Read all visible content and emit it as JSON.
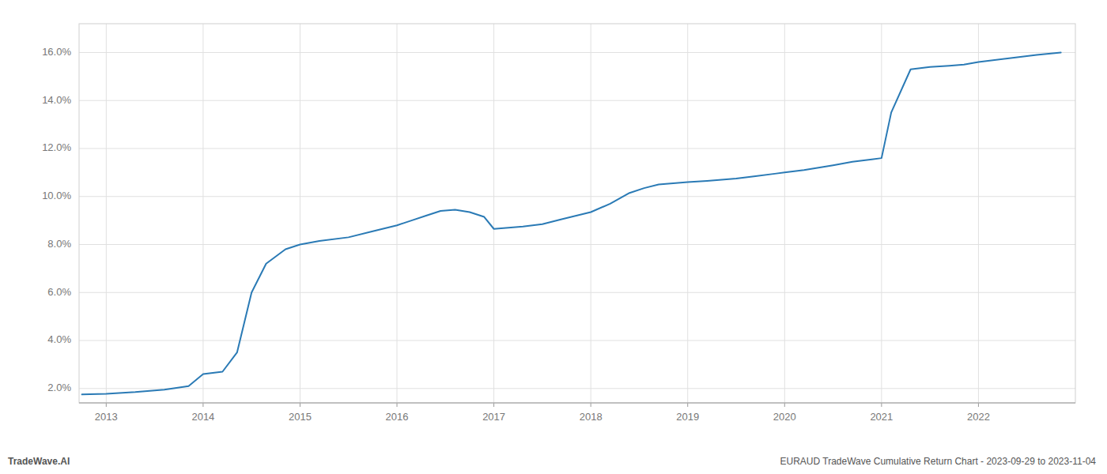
{
  "chart_data": {
    "type": "line",
    "title": "EURAUD TradeWave Cumulative Return Chart - 2023-09-29 to 2023-11-04",
    "annotations": [
      "TradeWave.AI"
    ],
    "x": [
      2012.75,
      2013.0,
      2013.3,
      2013.6,
      2013.85,
      2014.0,
      2014.1,
      2014.2,
      2014.35,
      2014.5,
      2014.65,
      2014.85,
      2015.0,
      2015.2,
      2015.5,
      2015.75,
      2016.0,
      2016.15,
      2016.3,
      2016.45,
      2016.6,
      2016.75,
      2016.9,
      2017.0,
      2017.15,
      2017.3,
      2017.5,
      2017.7,
      2017.85,
      2018.0,
      2018.2,
      2018.4,
      2018.55,
      2018.7,
      2018.85,
      2019.0,
      2019.2,
      2019.5,
      2019.7,
      2019.9,
      2020.0,
      2020.2,
      2020.5,
      2020.7,
      2020.9,
      2021.0,
      2021.1,
      2021.3,
      2021.5,
      2021.7,
      2021.85,
      2022.0,
      2022.3,
      2022.6,
      2022.85
    ],
    "values": [
      1.75,
      1.78,
      1.85,
      1.95,
      2.1,
      2.6,
      2.65,
      2.7,
      3.5,
      6.0,
      7.2,
      7.8,
      8.0,
      8.15,
      8.3,
      8.55,
      8.8,
      9.0,
      9.2,
      9.4,
      9.45,
      9.35,
      9.15,
      8.65,
      8.7,
      8.75,
      8.85,
      9.05,
      9.2,
      9.35,
      9.7,
      10.15,
      10.35,
      10.5,
      10.55,
      10.6,
      10.65,
      10.75,
      10.85,
      10.95,
      11.0,
      11.1,
      11.3,
      11.45,
      11.55,
      11.6,
      13.5,
      15.3,
      15.4,
      15.45,
      15.5,
      15.6,
      15.75,
      15.9,
      16.0
    ],
    "color": "#2a7ab5",
    "xlim": [
      2012.72,
      2023.0
    ],
    "ylim": [
      1.4,
      17.2
    ],
    "xticks": [
      2013,
      2014,
      2015,
      2016,
      2017,
      2018,
      2019,
      2020,
      2021,
      2022
    ],
    "yticks": [
      {
        "value": 2.0,
        "label": "2.0%"
      },
      {
        "value": 4.0,
        "label": "4.0%"
      },
      {
        "value": 6.0,
        "label": "6.0%"
      },
      {
        "value": 8.0,
        "label": "8.0%"
      },
      {
        "value": 10.0,
        "label": "10.0%"
      },
      {
        "value": 12.0,
        "label": "12.0%"
      },
      {
        "value": 14.0,
        "label": "14.0%"
      },
      {
        "value": 16.0,
        "label": "16.0%"
      }
    ],
    "grid": true
  }
}
